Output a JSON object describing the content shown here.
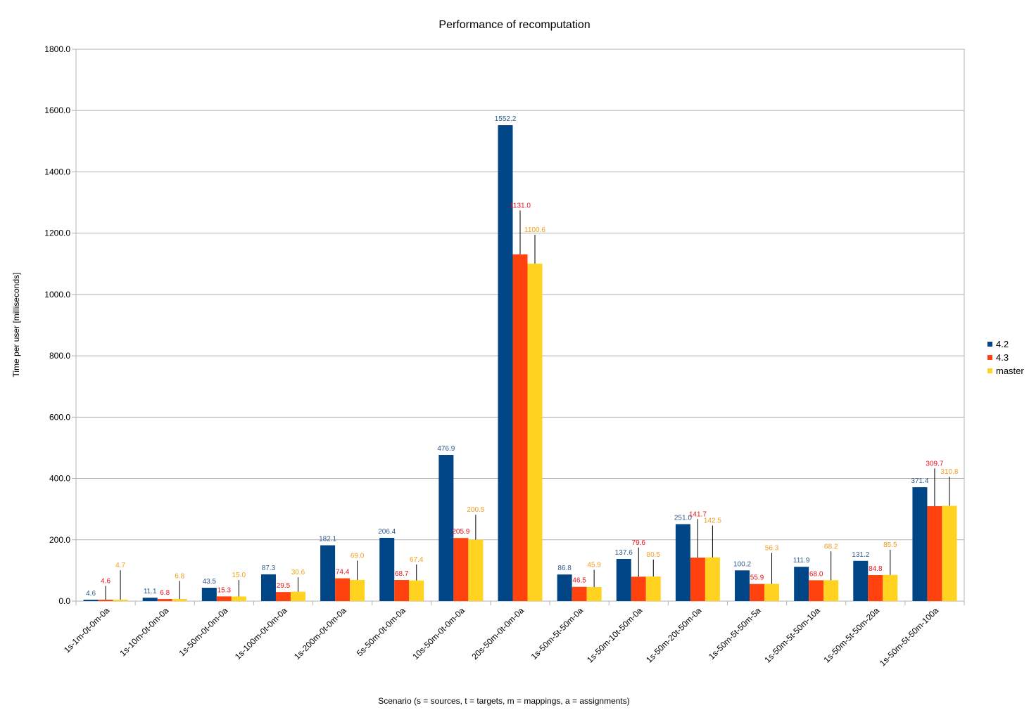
{
  "chart_data": {
    "type": "bar",
    "title": "Performance of recomputation",
    "xlabel": "Scenario (s = sources, t = targets, m = mappings, a = assignments)",
    "ylabel": "Time per user [milliseconds]",
    "ylim": [
      0,
      1800
    ],
    "yticks": [
      "0.0",
      "200.0",
      "400.0",
      "600.0",
      "800.0",
      "1000.0",
      "1200.0",
      "1400.0",
      "1600.0",
      "1800.0"
    ],
    "grid": true,
    "legend_position": "right",
    "categories": [
      "1s-1m-0t-0m-0a",
      "1s-10m-0t-0m-0a",
      "1s-50m-0t-0m-0a",
      "1s-100m-0t-0m-0a",
      "1s-200m-0t-0m-0a",
      "5s-50m-0t-0m-0a",
      "10s-50m-0t-0m-0a",
      "20s-50m-0t-0m-0a",
      "1s-50m-5t-50m-0a",
      "1s-50m-10t-50m-0a",
      "1s-50m-20t-50m-0a",
      "1s-50m-5t-50m-5a",
      "1s-50m-5t-50m-10a",
      "1s-50m-5t-50m-20a",
      "1s-50m-5t-50m-100a"
    ],
    "series": [
      {
        "name": "4.2",
        "color": "#004586",
        "label_color": "#2e5a8e",
        "values": [
          4.6,
          11.1,
          43.5,
          87.3,
          182.1,
          206.4,
          476.9,
          1552.2,
          86.8,
          137.6,
          251.0,
          100.2,
          111.9,
          131.2,
          371.4
        ],
        "labels": [
          "4.6",
          "11.1",
          "43.5",
          "87.3",
          "182.1",
          "206.4",
          "476.9",
          "1552.2",
          "86.8",
          "137.6",
          "251.0",
          "100.2",
          "111.9",
          "131.2",
          "371.4"
        ],
        "errors": [
          0,
          0,
          0,
          0,
          0,
          0,
          0,
          0,
          0,
          0,
          0,
          0,
          0,
          0,
          0
        ]
      },
      {
        "name": "4.3",
        "color": "#ff420e",
        "label_color": "#e8141c",
        "values": [
          4.6,
          6.8,
          15.3,
          29.5,
          74.4,
          68.7,
          205.9,
          1131.0,
          46.5,
          79.6,
          141.7,
          55.9,
          68.0,
          84.8,
          309.7
        ],
        "labels": [
          "4.6",
          "6.8",
          "15.3",
          "29.5",
          "74.4",
          "68.7",
          "205.9",
          "1131.0",
          "46.5",
          "79.6",
          "141.7",
          "55.9",
          "68.0",
          "84.8",
          "309.7"
        ],
        "errors": [
          45,
          0,
          0,
          0,
          0,
          0,
          0,
          143,
          0,
          95,
          126,
          0,
          0,
          0,
          123
        ]
      },
      {
        "name": "master",
        "color": "#ffd320",
        "label_color": "#f39c1a",
        "values": [
          4.7,
          6.8,
          15.0,
          30.6,
          69.0,
          67.4,
          200.5,
          1100.6,
          45.9,
          80.5,
          142.5,
          56.3,
          68.2,
          85.5,
          310.8
        ],
        "labels": [
          "4.7",
          "6.8",
          "15.0",
          "30.6",
          "69.0",
          "67.4",
          "200.5",
          "1100.6",
          "45.9",
          "80.5",
          "142.5",
          "56.3",
          "68.2",
          "85.5",
          "310.8"
        ],
        "errors": [
          96,
          59,
          54,
          47,
          63,
          52,
          81,
          94,
          56,
          55,
          104,
          101,
          94,
          82,
          95
        ]
      }
    ]
  }
}
